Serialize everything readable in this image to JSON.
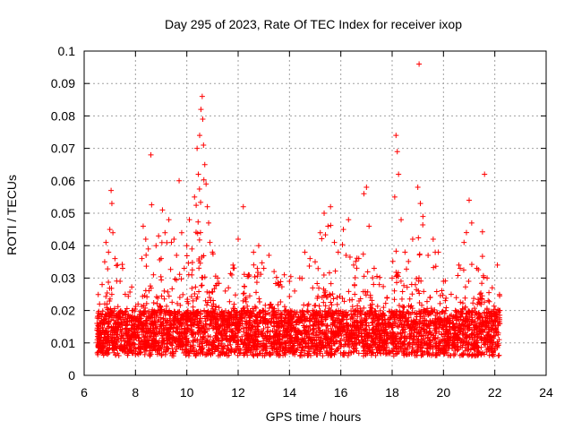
{
  "chart_data": {
    "type": "scatter",
    "title": "Day 295 of 2023, Rate Of TEC Index for receiver ixop",
    "xlabel": "GPS time / hours",
    "ylabel": "ROTI / TECUs",
    "xlim": [
      6,
      24
    ],
    "ylim": [
      0,
      0.1
    ],
    "xticks": [
      6,
      8,
      10,
      12,
      14,
      16,
      18,
      20,
      22,
      24
    ],
    "yticks": [
      0,
      0.01,
      0.02,
      0.03,
      0.04,
      0.05,
      0.06,
      0.07,
      0.08,
      0.09,
      0.1
    ],
    "xtick_labels": [
      "6",
      "8",
      "10",
      "12",
      "14",
      "16",
      "18",
      "20",
      "22",
      "24"
    ],
    "ytick_labels": [
      "0",
      "0.01",
      "0.02",
      "0.03",
      "0.04",
      "0.05",
      "0.06",
      "0.07",
      "0.08",
      "0.09",
      "0.1"
    ],
    "grid": true,
    "marker": "plus",
    "color": "#ff0000",
    "series": [
      {
        "points": [
          [
            6.5,
            0.014
          ],
          [
            6.6,
            0.022
          ],
          [
            6.7,
            0.028
          ],
          [
            6.8,
            0.035
          ],
          [
            6.85,
            0.041
          ],
          [
            6.95,
            0.038
          ],
          [
            7.0,
            0.045
          ],
          [
            7.05,
            0.057
          ],
          [
            7.08,
            0.053
          ],
          [
            7.12,
            0.044
          ],
          [
            7.2,
            0.036
          ],
          [
            7.3,
            0.034
          ],
          [
            7.4,
            0.029
          ],
          [
            7.5,
            0.033
          ],
          [
            7.6,
            0.025
          ],
          [
            7.7,
            0.018
          ],
          [
            7.9,
            0.02
          ],
          [
            8.1,
            0.022
          ],
          [
            8.25,
            0.036
          ],
          [
            8.3,
            0.046
          ],
          [
            8.4,
            0.042
          ],
          [
            8.5,
            0.039
          ],
          [
            8.6,
            0.068
          ],
          [
            8.7,
            0.031
          ],
          [
            8.8,
            0.04
          ],
          [
            8.9,
            0.043
          ],
          [
            9.0,
            0.036
          ],
          [
            9.05,
            0.051
          ],
          [
            9.15,
            0.044
          ],
          [
            9.3,
            0.048
          ],
          [
            9.4,
            0.041
          ],
          [
            9.5,
            0.042
          ],
          [
            9.6,
            0.037
          ],
          [
            9.7,
            0.06
          ],
          [
            9.8,
            0.044
          ],
          [
            9.9,
            0.033
          ],
          [
            10.0,
            0.04
          ],
          [
            10.1,
            0.048
          ],
          [
            10.2,
            0.039
          ],
          [
            10.3,
            0.055
          ],
          [
            10.4,
            0.07
          ],
          [
            10.45,
            0.062
          ],
          [
            10.5,
            0.074
          ],
          [
            10.55,
            0.082
          ],
          [
            10.6,
            0.086
          ],
          [
            10.62,
            0.079
          ],
          [
            10.65,
            0.071
          ],
          [
            10.7,
            0.065
          ],
          [
            10.75,
            0.059
          ],
          [
            10.8,
            0.052
          ],
          [
            10.85,
            0.047
          ],
          [
            10.9,
            0.041
          ],
          [
            11.0,
            0.038
          ],
          [
            11.2,
            0.03
          ],
          [
            11.5,
            0.026
          ],
          [
            11.8,
            0.034
          ],
          [
            12.0,
            0.042
          ],
          [
            12.2,
            0.052
          ],
          [
            12.4,
            0.031
          ],
          [
            12.6,
            0.038
          ],
          [
            12.8,
            0.04
          ],
          [
            13.0,
            0.033
          ],
          [
            13.2,
            0.037
          ],
          [
            13.4,
            0.032
          ],
          [
            13.6,
            0.028
          ],
          [
            13.8,
            0.031
          ],
          [
            14.0,
            0.029
          ],
          [
            14.2,
            0.026
          ],
          [
            14.4,
            0.03
          ],
          [
            14.6,
            0.038
          ],
          [
            14.8,
            0.036
          ],
          [
            15.0,
            0.035
          ],
          [
            15.2,
            0.044
          ],
          [
            15.35,
            0.05
          ],
          [
            15.5,
            0.046
          ],
          [
            15.6,
            0.052
          ],
          [
            15.75,
            0.041
          ],
          [
            15.9,
            0.038
          ],
          [
            16.1,
            0.045
          ],
          [
            16.3,
            0.048
          ],
          [
            16.5,
            0.034
          ],
          [
            16.7,
            0.036
          ],
          [
            16.9,
            0.056
          ],
          [
            17.0,
            0.058
          ],
          [
            17.1,
            0.046
          ],
          [
            17.3,
            0.033
          ],
          [
            17.5,
            0.028
          ],
          [
            17.8,
            0.024
          ],
          [
            18.0,
            0.03
          ],
          [
            18.1,
            0.055
          ],
          [
            18.15,
            0.074
          ],
          [
            18.2,
            0.069
          ],
          [
            18.25,
            0.062
          ],
          [
            18.35,
            0.048
          ],
          [
            18.5,
            0.038
          ],
          [
            18.8,
            0.042
          ],
          [
            19.0,
            0.058
          ],
          [
            19.05,
            0.096
          ],
          [
            19.1,
            0.053
          ],
          [
            19.2,
            0.049
          ],
          [
            19.4,
            0.037
          ],
          [
            19.6,
            0.042
          ],
          [
            19.8,
            0.038
          ],
          [
            20.0,
            0.029
          ],
          [
            20.3,
            0.025
          ],
          [
            20.6,
            0.034
          ],
          [
            20.8,
            0.041
          ],
          [
            21.0,
            0.054
          ],
          [
            21.1,
            0.047
          ],
          [
            21.3,
            0.033
          ],
          [
            21.6,
            0.062
          ],
          [
            21.7,
            0.03
          ],
          [
            21.9,
            0.027
          ],
          [
            22.1,
            0.034
          ],
          [
            22.2,
            0.02
          ]
        ]
      }
    ]
  }
}
